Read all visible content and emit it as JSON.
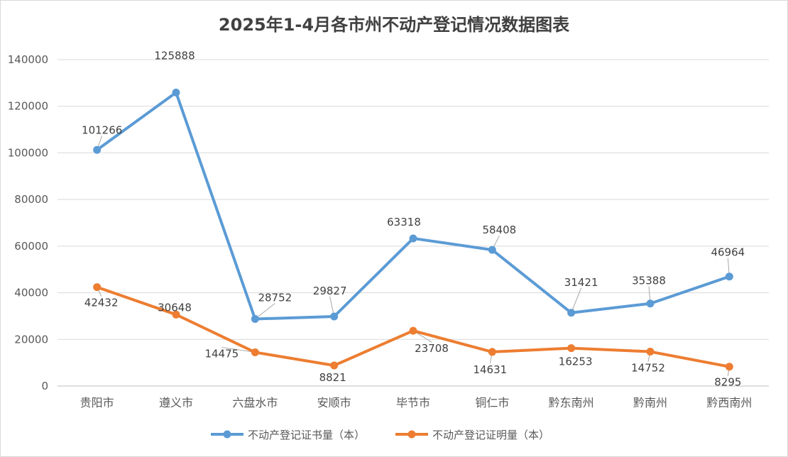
{
  "chart_data": {
    "type": "line",
    "title": "2025年1-4月各市州不动产登记情况数据图表",
    "xlabel": "",
    "ylabel": "",
    "categories": [
      "贵阳市",
      "遵义市",
      "六盘水市",
      "安顺市",
      "毕节市",
      "铜仁市",
      "黔东南州",
      "黔南州",
      "黔西南州"
    ],
    "ylim": [
      0,
      140000
    ],
    "yticks": [
      "0",
      "20000",
      "40000",
      "60000",
      "80000",
      "100000",
      "120000",
      "140000"
    ],
    "ytick_values": [
      0,
      20000,
      40000,
      60000,
      80000,
      100000,
      120000,
      140000
    ],
    "grid": true,
    "legend": "bottom",
    "series": [
      {
        "name": "不动产登记证书量（本）",
        "color": "#5B9BD5",
        "values": [
          101266,
          125888,
          28752,
          29827,
          63318,
          58408,
          31421,
          35388,
          46964
        ],
        "labels": [
          "101266",
          "125888",
          "28752",
          "29827",
          "63318",
          "58408",
          "31421",
          "35388",
          "46964"
        ]
      },
      {
        "name": "不动产登记证明量（本）",
        "color": "#ED7D31",
        "values": [
          42432,
          30648,
          14475,
          8821,
          23708,
          14631,
          16253,
          14752,
          8295
        ],
        "labels": [
          "42432",
          "30648",
          "14475",
          "8821",
          "23708",
          "14631",
          "16253",
          "14752",
          "8295"
        ]
      }
    ]
  }
}
